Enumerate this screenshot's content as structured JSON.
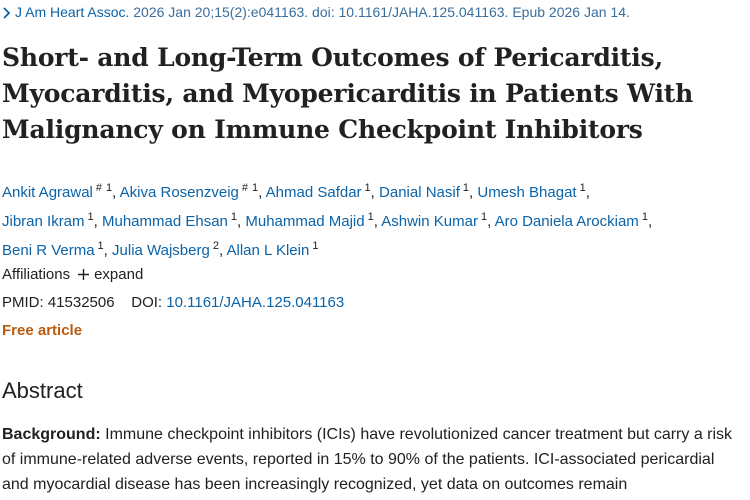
{
  "citation": {
    "journal": "J Am Heart Assoc.",
    "details": "2026 Jan 20;15(2):e041163. doi: 10.1161/JAHA.125.041163. Epub 2026 Jan 14."
  },
  "title_lines": [
    "Short- and Long-Term Outcomes of Pericarditis,",
    "Myocarditis, and Myopericarditis in Patients With",
    "Malignancy on Immune Checkpoint Inhibitors"
  ],
  "authors": [
    {
      "name": "Ankit Agrawal",
      "marks": [
        "#",
        "1"
      ]
    },
    {
      "name": "Akiva Rosenzveig",
      "marks": [
        "#",
        "1"
      ]
    },
    {
      "name": "Ahmad Safdar",
      "marks": [
        "1"
      ]
    },
    {
      "name": "Danial Nasif",
      "marks": [
        "1"
      ]
    },
    {
      "name": "Umesh Bhagat",
      "marks": [
        "1"
      ]
    },
    {
      "name": "Jibran Ikram",
      "marks": [
        "1"
      ]
    },
    {
      "name": "Muhammad Ehsan",
      "marks": [
        "1"
      ]
    },
    {
      "name": "Muhammad Majid",
      "marks": [
        "1"
      ]
    },
    {
      "name": "Ashwin Kumar",
      "marks": [
        "1"
      ]
    },
    {
      "name": "Aro Daniela Arockiam",
      "marks": [
        "1"
      ]
    },
    {
      "name": "Beni R Verma",
      "marks": [
        "1"
      ]
    },
    {
      "name": "Julia Wajsberg",
      "marks": [
        "2"
      ]
    },
    {
      "name": "Allan L Klein",
      "marks": [
        "1"
      ]
    }
  ],
  "author_separator": ",",
  "affiliations": {
    "label": "Affiliations",
    "toggle": "expand"
  },
  "identifiers": {
    "pmid_label": "PMID:",
    "pmid": "41532506",
    "doi_label": "DOI:",
    "doi": "10.1161/JAHA.125.041163"
  },
  "free_article": "Free article",
  "abstract": {
    "heading": "Abstract",
    "background_label": "Background:",
    "background_text": "Immune checkpoint inhibitors (ICIs) have revolutionized cancer treatment but carry a risk of immune-related adverse events, reported in 15% to 90% of the patients. ICI-associated pericardial and myocardial disease has been increasingly recognized, yet data on outcomes remain"
  }
}
